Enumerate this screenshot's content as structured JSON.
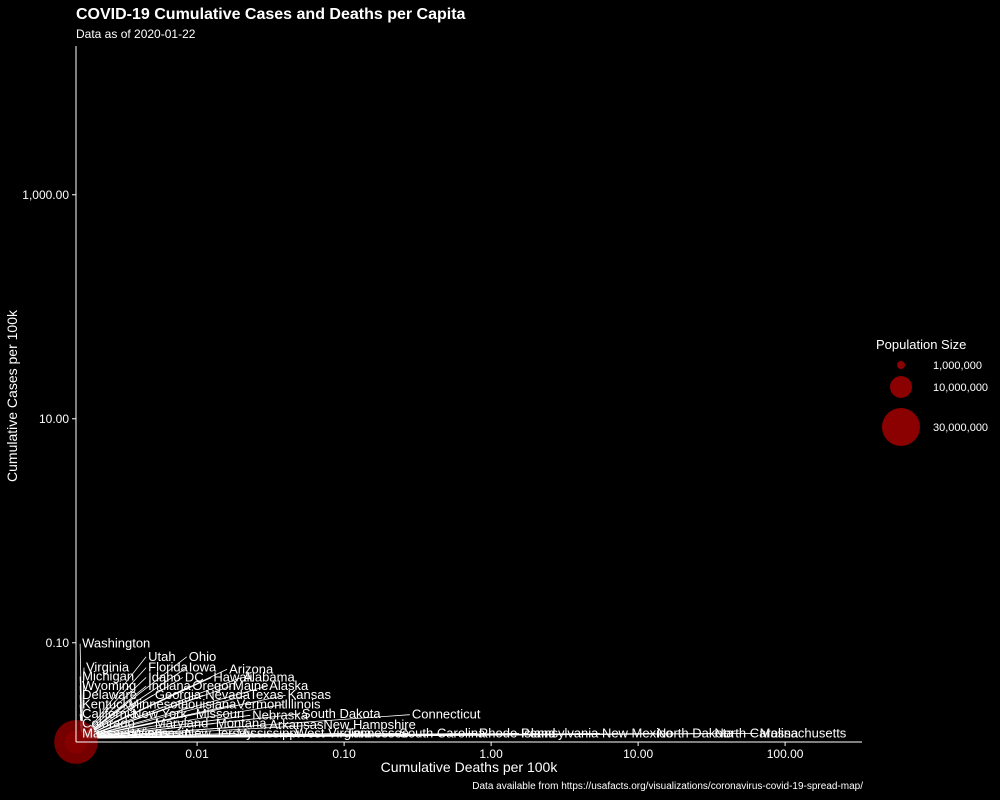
{
  "chart_data": {
    "type": "scatter",
    "title": "COVID-19 Cumulative Cases and Deaths per Capita",
    "subtitle": "Data as of 2020-01-22",
    "xlabel": "Cumulative Deaths per 100k",
    "ylabel": "Cumulative Cases per 100k",
    "x_scale": "log",
    "y_scale": "log",
    "xticks": [
      {
        "value": 0.01,
        "label": "0.01"
      },
      {
        "value": 0.1,
        "label": "0.10"
      },
      {
        "value": 1,
        "label": "1.00"
      },
      {
        "value": 10,
        "label": "10.00"
      },
      {
        "value": 100,
        "label": "100.00"
      }
    ],
    "yticks": [
      {
        "value": 0.1,
        "label": "0.10"
      },
      {
        "value": 10,
        "label": "10.00"
      },
      {
        "value": 1000,
        "label": "1,000.00"
      }
    ],
    "grid": false,
    "points": [
      {
        "state": "Washington",
        "deaths_per_100k": 0.0015,
        "cases_per_100k": 0.013,
        "population": 7600000
      },
      {
        "state": "California",
        "deaths_per_100k": 0.0015,
        "cases_per_100k": 0.013,
        "population": 39500000
      }
    ],
    "labels": [
      {
        "text": "Washington",
        "x": 0.0016,
        "y": 0.098
      },
      {
        "text": "Utah",
        "x": 0.0045,
        "y": 0.075
      },
      {
        "text": "Ohio",
        "x": 0.0085,
        "y": 0.075
      },
      {
        "text": "Virginia",
        "x": 0.0017,
        "y": 0.06
      },
      {
        "text": "Florida",
        "x": 0.0045,
        "y": 0.06
      },
      {
        "text": "Iowa",
        "x": 0.0085,
        "y": 0.06
      },
      {
        "text": "Arizona",
        "x": 0.016,
        "y": 0.058
      },
      {
        "text": "Michigan",
        "x": 0.0016,
        "y": 0.05
      },
      {
        "text": "Idaho",
        "x": 0.0045,
        "y": 0.049
      },
      {
        "text": "DC",
        "x": 0.008,
        "y": 0.049
      },
      {
        "text": "Hawaii",
        "x": 0.0125,
        "y": 0.049
      },
      {
        "text": "Alabama",
        "x": 0.02,
        "y": 0.049
      },
      {
        "text": "Wyoming",
        "x": 0.0016,
        "y": 0.041
      },
      {
        "text": "Indiana",
        "x": 0.0045,
        "y": 0.041
      },
      {
        "text": "Oregon",
        "x": 0.009,
        "y": 0.041
      },
      {
        "text": "Maine",
        "x": 0.017,
        "y": 0.041
      },
      {
        "text": "Alaska",
        "x": 0.03,
        "y": 0.041
      },
      {
        "text": "Delaware",
        "x": 0.0016,
        "y": 0.034
      },
      {
        "text": "Georgia",
        "x": 0.005,
        "y": 0.034
      },
      {
        "text": "Nevada",
        "x": 0.011,
        "y": 0.034
      },
      {
        "text": "Texas",
        "x": 0.022,
        "y": 0.034
      },
      {
        "text": "Kansas",
        "x": 0.04,
        "y": 0.034
      },
      {
        "text": "Kentucky",
        "x": 0.0016,
        "y": 0.028
      },
      {
        "text": "Minnesota",
        "x": 0.0033,
        "y": 0.028
      },
      {
        "text": "Louisiana",
        "x": 0.0075,
        "y": 0.028
      },
      {
        "text": "Vermont",
        "x": 0.018,
        "y": 0.028
      },
      {
        "text": "Illinois",
        "x": 0.038,
        "y": 0.028
      },
      {
        "text": "California",
        "x": 0.0016,
        "y": 0.023
      },
      {
        "text": "New York",
        "x": 0.0035,
        "y": 0.023
      },
      {
        "text": "Missouri",
        "x": 0.0095,
        "y": 0.023
      },
      {
        "text": "Nebraska",
        "x": 0.023,
        "y": 0.0225
      },
      {
        "text": "South Dakota",
        "x": 0.05,
        "y": 0.0232
      },
      {
        "text": "Connecticut",
        "x": 0.28,
        "y": 0.0228
      },
      {
        "text": "Colorado",
        "x": 0.0016,
        "y": 0.019
      },
      {
        "text": "Maryland",
        "x": 0.005,
        "y": 0.019
      },
      {
        "text": "Montana",
        "x": 0.013,
        "y": 0.019
      },
      {
        "text": "Arkansas",
        "x": 0.03,
        "y": 0.0185
      },
      {
        "text": "New Hampshire",
        "x": 0.07,
        "y": 0.0185
      },
      {
        "text": "Massachusetts",
        "x": 0.0016,
        "y": 0.0155
      },
      {
        "text": "Wisconsin",
        "x": 0.0035,
        "y": 0.0155
      },
      {
        "text": "New Jersey",
        "x": 0.008,
        "y": 0.0155
      },
      {
        "text": "Mississippi",
        "x": 0.018,
        "y": 0.0155
      },
      {
        "text": "West Virginia",
        "x": 0.045,
        "y": 0.0155
      },
      {
        "text": "Tennessee",
        "x": 0.1,
        "y": 0.0155
      },
      {
        "text": "South Carolina",
        "x": 0.23,
        "y": 0.0155
      },
      {
        "text": "Rhode Island",
        "x": 0.8,
        "y": 0.0155
      },
      {
        "text": "Pennsylvania",
        "x": 1.55,
        "y": 0.0155
      },
      {
        "text": "New Mexico",
        "x": 5.5,
        "y": 0.0155
      },
      {
        "text": "North Dakota",
        "x": 13,
        "y": 0.0155
      },
      {
        "text": "North Carolina",
        "x": 32,
        "y": 0.0155
      },
      {
        "text": "Massachusetts",
        "x": 65,
        "y": 0.0155
      }
    ],
    "point_color": "#8b0000",
    "legend": {
      "title": "Population Size",
      "position": "right",
      "items": [
        {
          "label": "1,000,000",
          "value": 1000000
        },
        {
          "label": "10,000,000",
          "value": 10000000
        },
        {
          "label": "30,000,000",
          "value": 30000000
        }
      ]
    }
  },
  "caption": "Data available from https://usafacts.org/visualizations/coronavirus-covid-19-spread-map/"
}
